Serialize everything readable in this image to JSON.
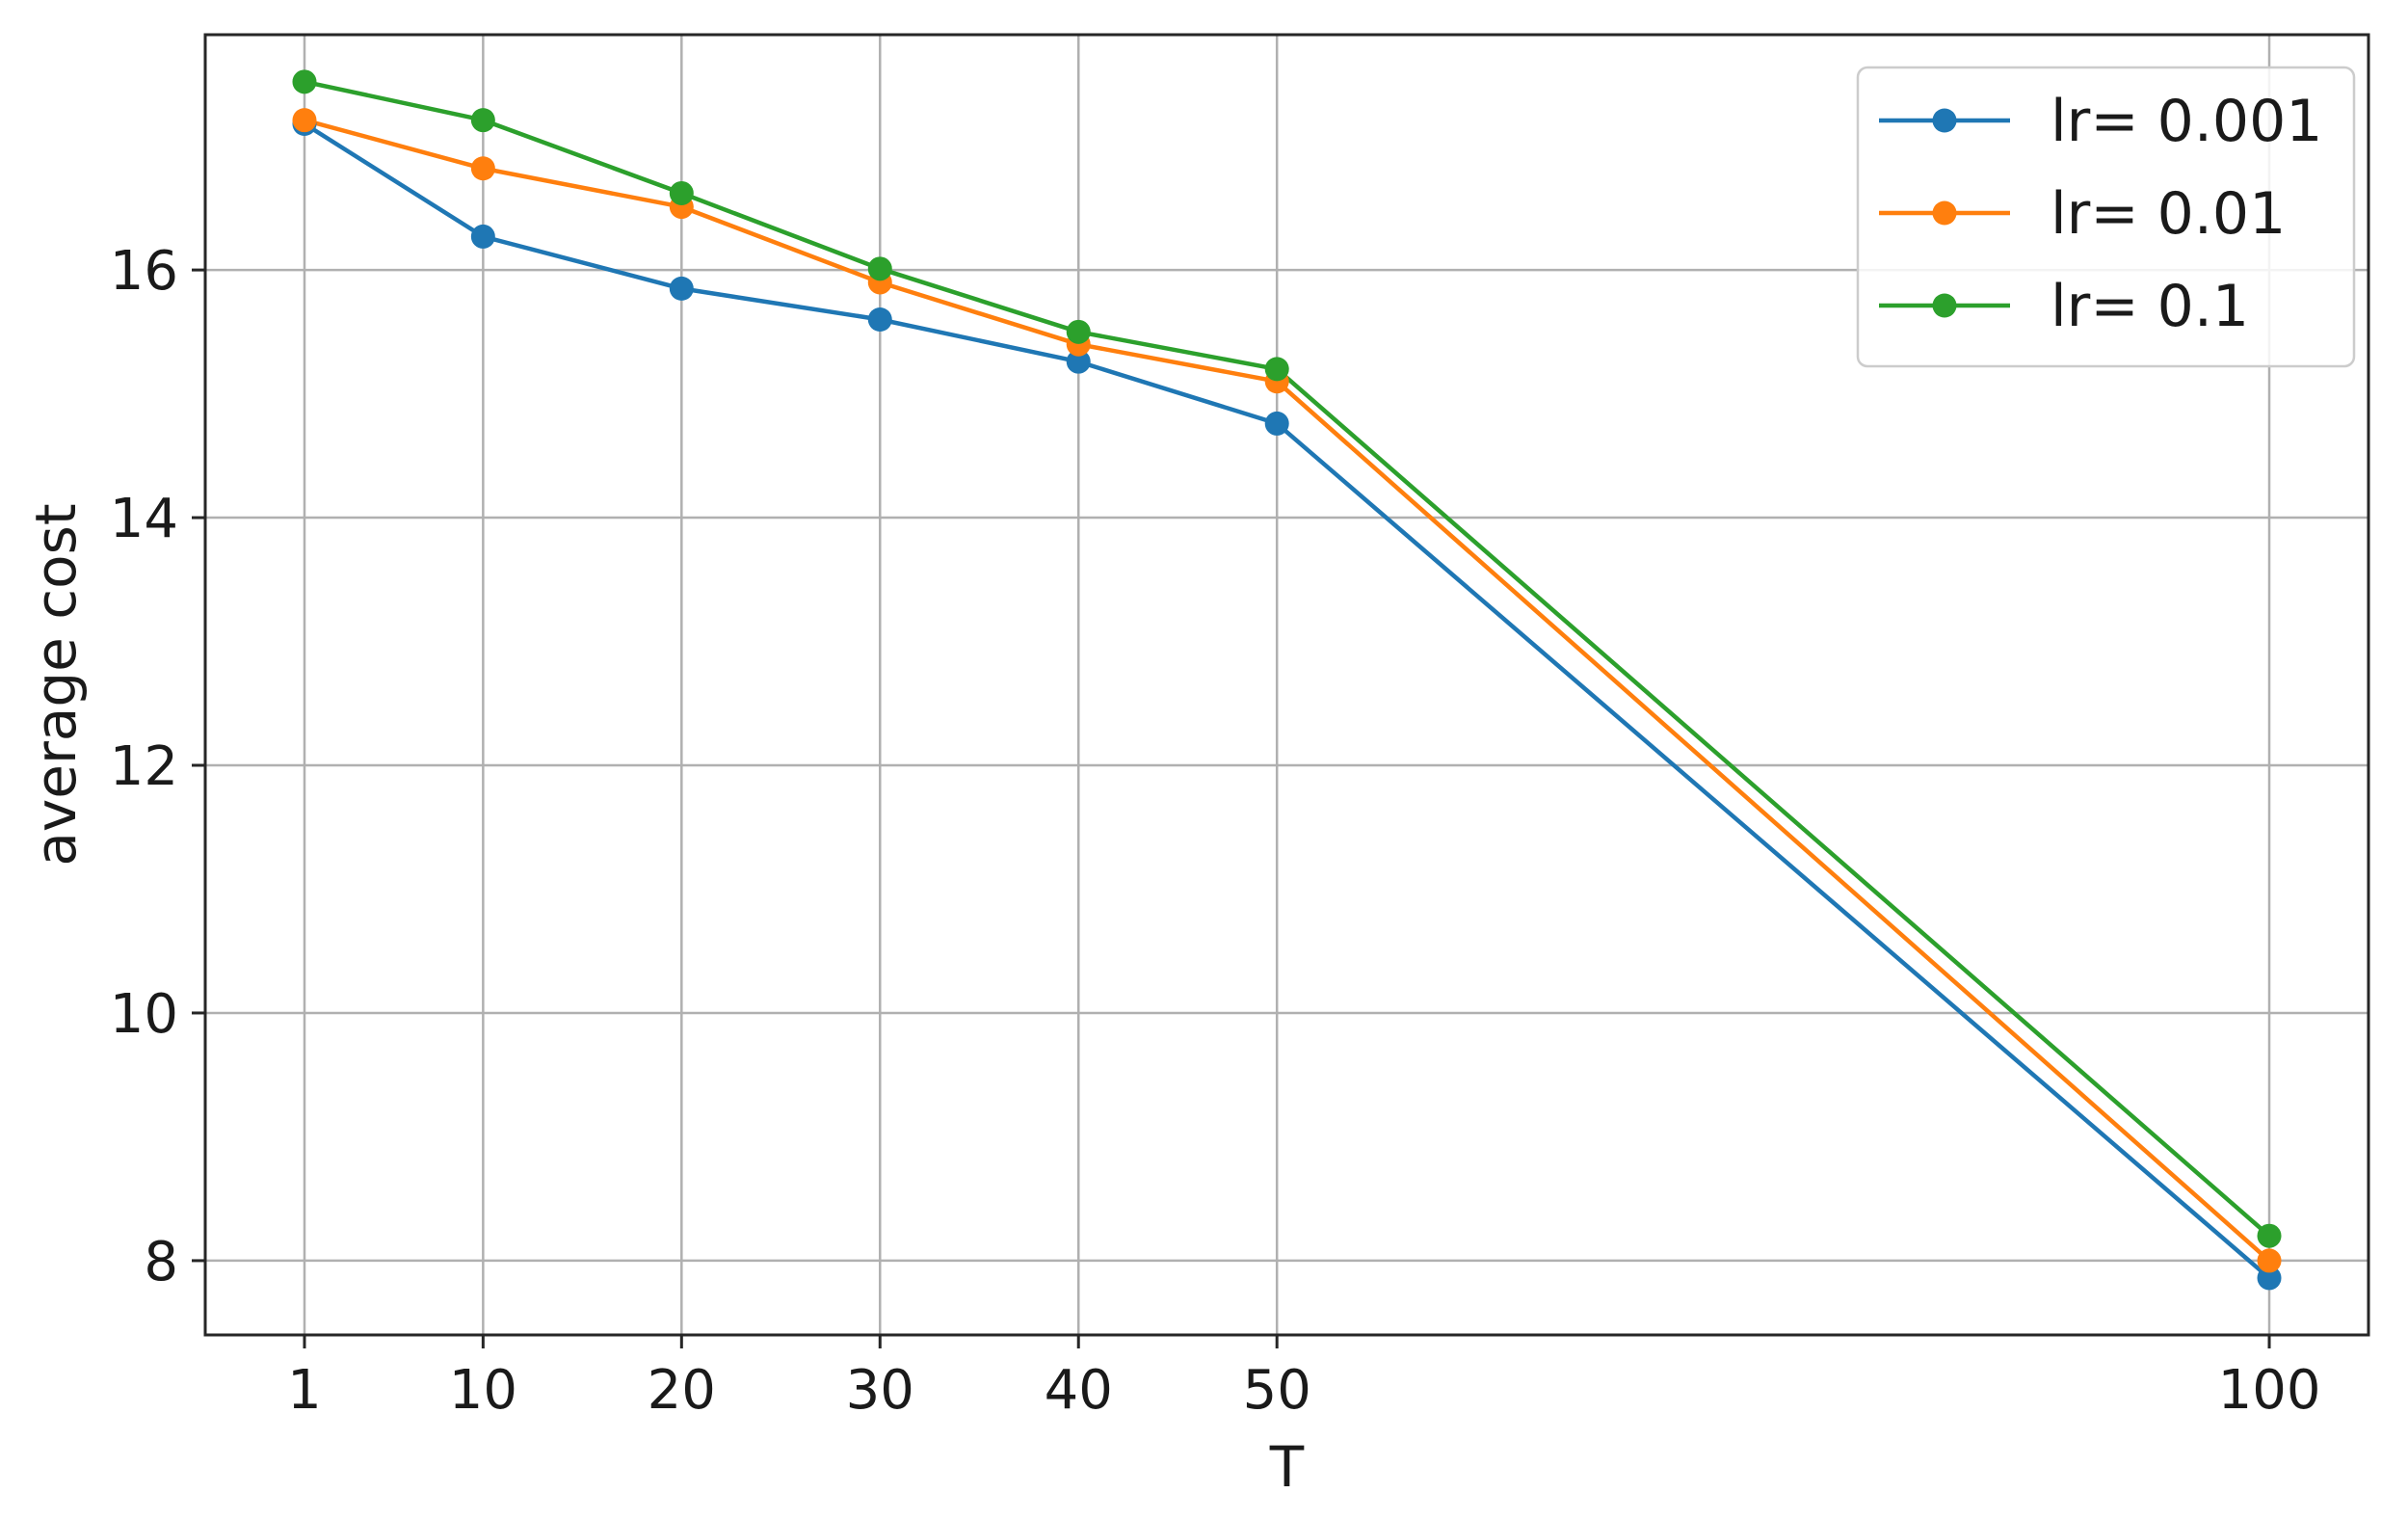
{
  "chart_data": {
    "type": "line",
    "title": "",
    "xlabel": "T",
    "ylabel": "average cost",
    "x": [
      1,
      10,
      20,
      30,
      40,
      50,
      100
    ],
    "xticks": [
      "1",
      "10",
      "20",
      "30",
      "40",
      "50",
      "100"
    ],
    "yticks": [
      "8",
      "10",
      "12",
      "14",
      "16"
    ],
    "xlim": [
      -4,
      105
    ],
    "ylim": [
      7.4,
      17.9
    ],
    "grid": true,
    "legend_position": "top-right",
    "series": [
      {
        "name": "lr= 0.001",
        "color": "#1f77b4",
        "values": [
          17.18,
          16.27,
          15.85,
          15.6,
          15.26,
          14.76,
          7.86
        ]
      },
      {
        "name": "lr= 0.01",
        "color": "#ff7f0e",
        "values": [
          17.21,
          16.82,
          16.51,
          15.9,
          15.4,
          15.1,
          8.0
        ]
      },
      {
        "name": "lr= 0.1",
        "color": "#2ca02c",
        "values": [
          17.52,
          17.21,
          16.62,
          16.01,
          15.5,
          15.2,
          8.2
        ]
      }
    ]
  }
}
